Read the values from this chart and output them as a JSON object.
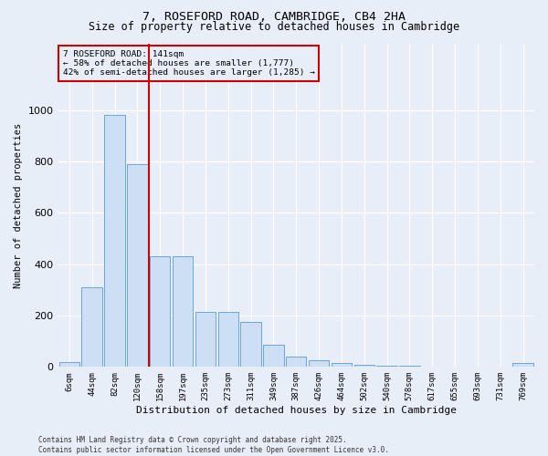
{
  "title1": "7, ROSEFORD ROAD, CAMBRIDGE, CB4 2HA",
  "title2": "Size of property relative to detached houses in Cambridge",
  "xlabel": "Distribution of detached houses by size in Cambridge",
  "ylabel": "Number of detached properties",
  "categories": [
    "6sqm",
    "44sqm",
    "82sqm",
    "120sqm",
    "158sqm",
    "197sqm",
    "235sqm",
    "273sqm",
    "311sqm",
    "349sqm",
    "387sqm",
    "426sqm",
    "464sqm",
    "502sqm",
    "540sqm",
    "578sqm",
    "617sqm",
    "655sqm",
    "693sqm",
    "731sqm",
    "769sqm"
  ],
  "values": [
    20,
    310,
    980,
    790,
    430,
    430,
    215,
    215,
    175,
    85,
    40,
    25,
    15,
    10,
    5,
    5,
    2,
    2,
    2,
    2,
    15
  ],
  "bar_color": "#ccdff5",
  "bar_edge_color": "#5a9bd5",
  "vline_x_index": 3,
  "vline_color": "#cc0000",
  "annotation_text": "7 ROSEFORD ROAD: 141sqm\n← 58% of detached houses are smaller (1,777)\n42% of semi-detached houses are larger (1,285) →",
  "annotation_box_color": "#cc0000",
  "ylim": [
    0,
    1260
  ],
  "yticks": [
    0,
    200,
    400,
    600,
    800,
    1000
  ],
  "footnote1": "Contains HM Land Registry data © Crown copyright and database right 2025.",
  "footnote2": "Contains public sector information licensed under the Open Government Licence v3.0.",
  "bg_color": "#e8eef8",
  "plot_bg_color": "#e8eef8",
  "title1_fontsize": 9.5,
  "title2_fontsize": 8.5
}
